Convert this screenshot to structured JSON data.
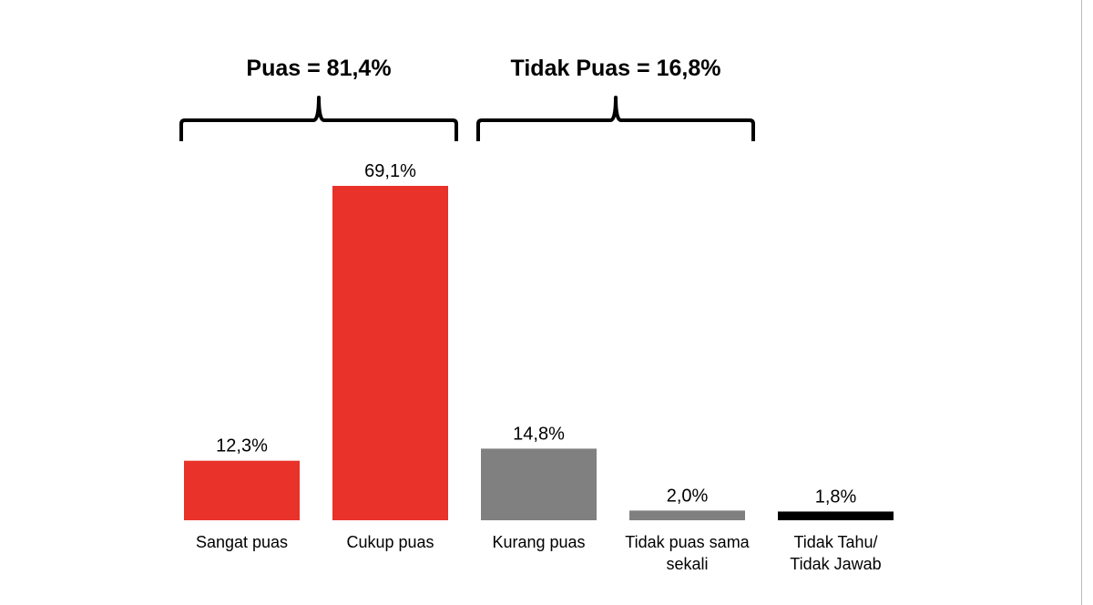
{
  "groups": [
    {
      "title": "Puas = 81,4%",
      "from": 0,
      "to": 1
    },
    {
      "title": "Tidak Puas = 16,8%",
      "from": 2,
      "to": 3
    }
  ],
  "chart_data": {
    "type": "bar",
    "categories": [
      "Sangat puas",
      "Cukup puas",
      "Kurang puas",
      "Tidak puas sama sekali",
      "Tidak Tahu/ Tidak Jawab"
    ],
    "category_lines": [
      [
        "Sangat puas"
      ],
      [
        "Cukup puas"
      ],
      [
        "Kurang puas"
      ],
      [
        "Tidak puas sama",
        "sekali"
      ],
      [
        "Tidak Tahu/",
        "Tidak Jawab"
      ]
    ],
    "values": [
      12.3,
      69.1,
      14.8,
      2.0,
      1.8
    ],
    "data_labels": [
      "12,3%",
      "69,1%",
      "14,8%",
      "2,0%",
      "1,8%"
    ],
    "colors": [
      "#e8322a",
      "#e8322a",
      "#808080",
      "#808080",
      "#000000"
    ],
    "title": "",
    "xlabel": "",
    "ylabel": "",
    "ylim": [
      0,
      69.1
    ],
    "grid": false,
    "legend": "none"
  }
}
